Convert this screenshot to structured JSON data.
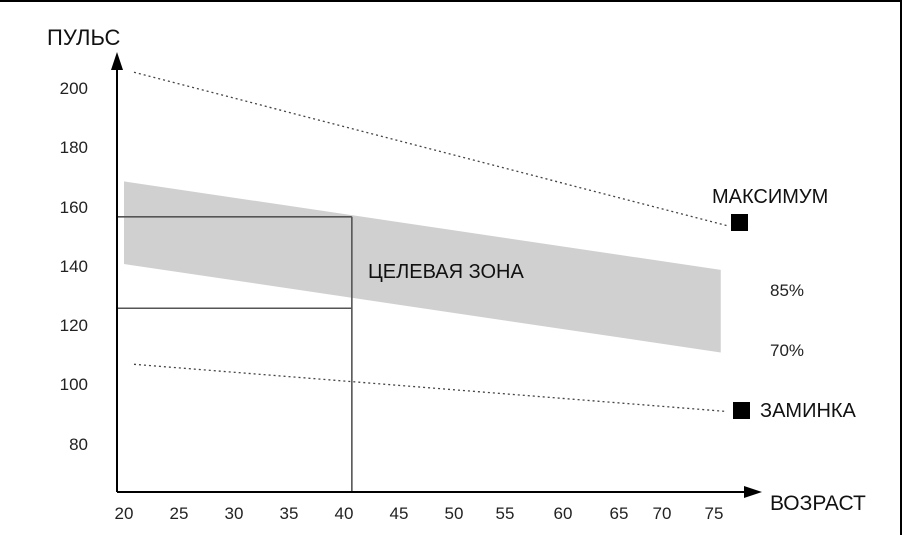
{
  "chart_data": {
    "type": "line",
    "ylabel": "ПУЛЬС",
    "xlabel": "ВОЗРАСТ",
    "x_ticks": [
      "20",
      "25",
      "30",
      "35",
      "40",
      "45",
      "50",
      "55",
      "60",
      "65",
      "70",
      "75"
    ],
    "y_ticks": [
      "200",
      "180",
      "160",
      "140",
      "120",
      "100",
      "80"
    ],
    "xlim": [
      20,
      76
    ],
    "ylim": [
      65,
      210
    ],
    "series": [
      {
        "name": "МАКСИМУМ",
        "style": "dotted",
        "x": [
          20,
          76.5
        ],
        "y": [
          205,
          153
        ]
      },
      {
        "name": "ЗАМИНКА",
        "style": "dotted",
        "x": [
          20,
          76.5
        ],
        "y": [
          106,
          90
        ]
      }
    ],
    "band": {
      "label": "ЦЕЛЕВАЯ ЗОНА",
      "upper_name": "85%",
      "lower_name": "70%",
      "x": [
        20,
        75
      ],
      "upper": [
        168,
        138
      ],
      "lower": [
        140,
        110
      ],
      "color": "#d0d0d0"
    },
    "reference_lines": [
      {
        "y": 156,
        "x_end": 41
      },
      {
        "y": 125,
        "x_end": 41
      },
      {
        "x": 41
      }
    ],
    "markers": [
      {
        "label": "МАКСИМУМ",
        "x": 76.5,
        "y": 153
      },
      {
        "label": "ЗАМИНКА",
        "x": 76.5,
        "y": 90
      }
    ],
    "annotations": [
      "ЦЕЛЕВАЯ ЗОНА",
      "85%",
      "70%",
      "МАКСИМУМ",
      "ЗАМИНКА"
    ]
  }
}
